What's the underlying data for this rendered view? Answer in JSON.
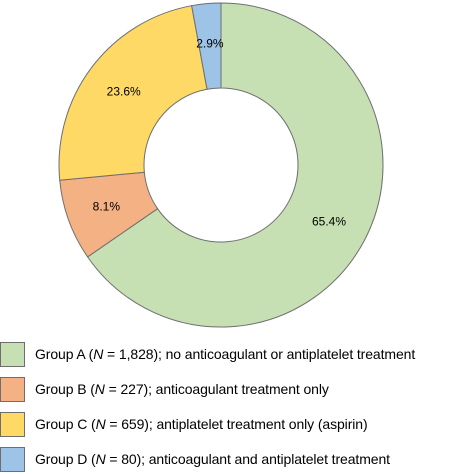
{
  "chart_data": {
    "type": "pie",
    "title": "",
    "categories": [
      "Group A",
      "Group B",
      "Group C",
      "Group D"
    ],
    "values": [
      65.4,
      8.1,
      23.6,
      2.9
    ],
    "value_labels": [
      "65.4%",
      "8.1%",
      "23.6%",
      "2.9%"
    ],
    "colors": [
      "#c6e0b4",
      "#f4b183",
      "#ffd966",
      "#9dc3e6"
    ],
    "donut": true,
    "start": "top",
    "direction": "clockwise",
    "legend_position": "bottom",
    "legend": [
      {
        "prefix": "Group A (",
        "n_symbol": "N",
        "n_value": " = 1,828)",
        "description": "; no anticoagulant or antiplatelet treatment"
      },
      {
        "prefix": "Group B (",
        "n_symbol": "N",
        "n_value": " = 227)",
        "description": "; anticoagulant treatment only"
      },
      {
        "prefix": "Group C (",
        "n_symbol": "N",
        "n_value": " = 659)",
        "description": "; antiplatelet treatment only (aspirin)"
      },
      {
        "prefix": "Group D (",
        "n_symbol": "N",
        "n_value": " = 80)",
        "description": "; anticoagulant and antiplatelet treatment"
      }
    ]
  }
}
